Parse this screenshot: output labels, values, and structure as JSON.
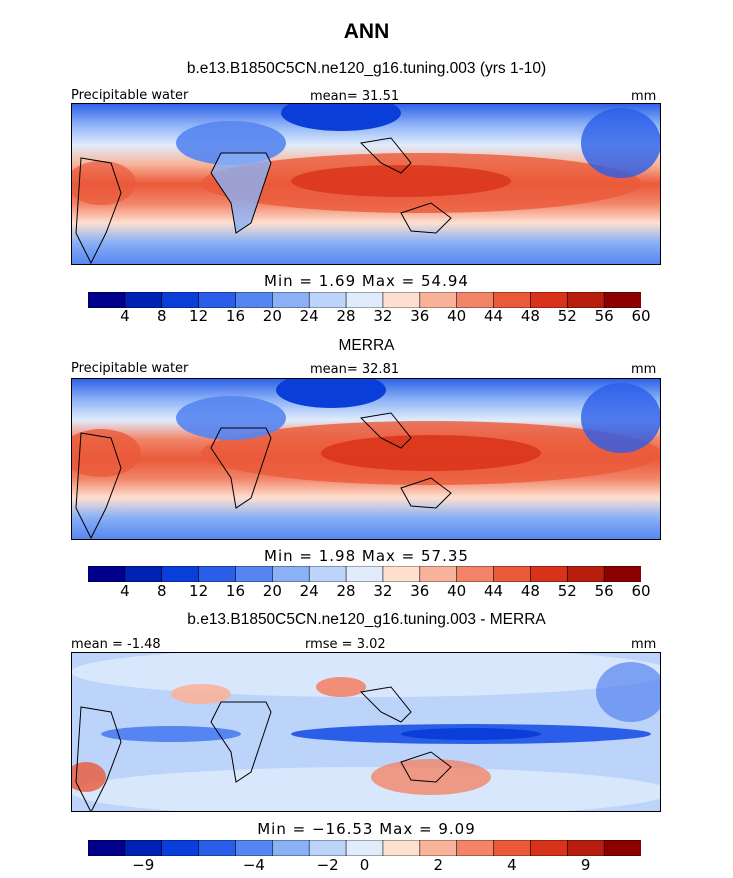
{
  "title": "ANN",
  "colors": {
    "scale": [
      "#00008c",
      "#0022b4",
      "#0a3ed9",
      "#2a5ee8",
      "#5585f0",
      "#8ab0f6",
      "#bcd3fa",
      "#e0ecfc",
      "#fde0d0",
      "#f8b39a",
      "#f28468",
      "#ea5a3a",
      "#d9321a",
      "#b81e0d",
      "#8c0000"
    ],
    "diff_scale": [
      "#00008c",
      "#0022b4",
      "#0a3ed9",
      "#2a5ee8",
      "#5585f0",
      "#8ab0f6",
      "#bcd3fa",
      "#e0ecfc",
      "#fde0d0",
      "#f8b39a",
      "#f28468",
      "#ea5a3a",
      "#d9321a",
      "#b81e0d",
      "#8c0000"
    ]
  },
  "panels": [
    {
      "id": "model",
      "title": "b.e13.B1850C5CN.ne120_g16.tuning.003 (yrs 1-10)",
      "left_label": "Precipitable water",
      "center_label": "mean=  31.51",
      "right_label": "mm",
      "minmax": "Min =    1.69  Max =   54.94",
      "ticks": [
        "4",
        "8",
        "12",
        "16",
        "20",
        "24",
        "28",
        "32",
        "36",
        "40",
        "44",
        "48",
        "52",
        "56",
        "60"
      ]
    },
    {
      "id": "obs",
      "title": "MERRA",
      "left_label": "Precipitable water",
      "center_label": "mean=  32.81",
      "right_label": "mm",
      "minmax": "Min =    1.98  Max =   57.35",
      "ticks": [
        "4",
        "8",
        "12",
        "16",
        "20",
        "24",
        "28",
        "32",
        "36",
        "40",
        "44",
        "48",
        "52",
        "56",
        "60"
      ]
    },
    {
      "id": "diff",
      "title": "b.e13.B1850C5CN.ne120_g16.tuning.003 - MERRA",
      "left_label": "mean =  -1.48",
      "center_label": "rmse =   3.02",
      "right_label": "mm",
      "minmax": "Min = −16.53  Max =    9.09",
      "ticks": [
        "−9",
        "−4",
        "−2",
        "0",
        "2",
        "4",
        "9"
      ]
    }
  ],
  "chart_data": [
    {
      "type": "heatmap",
      "title": "b.e13.B1850C5CN.ne120_g16.tuning.003 (yrs 1-10)",
      "variable": "Precipitable water",
      "units": "mm",
      "mean": 31.51,
      "min": 1.69,
      "max": 54.94,
      "contour_levels": [
        4,
        8,
        12,
        16,
        20,
        24,
        28,
        32,
        36,
        40,
        44,
        48,
        52,
        56,
        60
      ]
    },
    {
      "type": "heatmap",
      "title": "MERRA",
      "variable": "Precipitable water",
      "units": "mm",
      "mean": 32.81,
      "min": 1.98,
      "max": 57.35,
      "contour_levels": [
        4,
        8,
        12,
        16,
        20,
        24,
        28,
        32,
        36,
        40,
        44,
        48,
        52,
        56,
        60
      ]
    },
    {
      "type": "heatmap",
      "title": "b.e13.B1850C5CN.ne120_g16.tuning.003 - MERRA",
      "units": "mm",
      "mean": -1.48,
      "rmse": 3.02,
      "min": -16.53,
      "max": 9.09,
      "tick_labels": [
        -9,
        -4,
        -2,
        0,
        2,
        4,
        9
      ]
    }
  ]
}
